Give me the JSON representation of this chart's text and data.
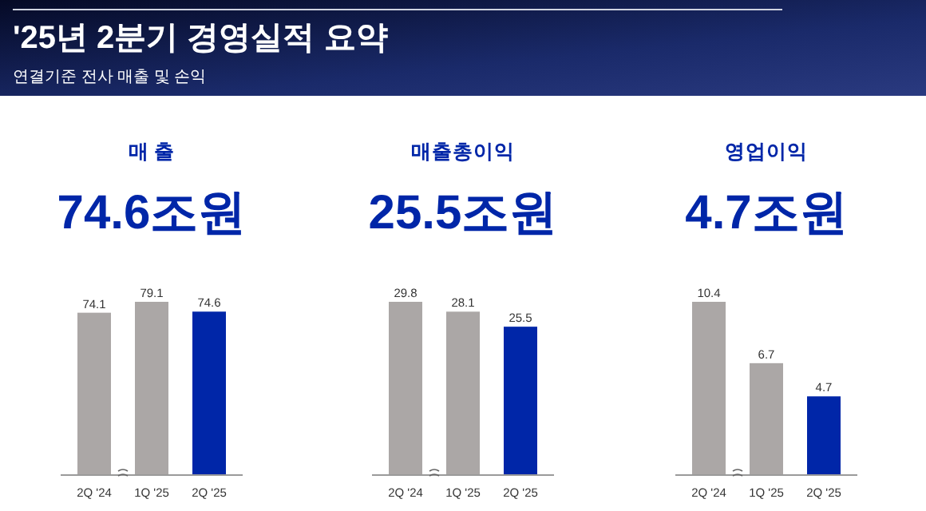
{
  "chart_data": [
    {
      "type": "bar",
      "title": "매 출",
      "subtitle": "74.6조원",
      "annotations": [
        "'25년 2분기 경영실적 요약",
        "연결기준 전사 매출 및 손익"
      ],
      "categories": [
        "2Q '24",
        "1Q '25",
        "2Q '25"
      ],
      "values": [
        74.1,
        79.1,
        74.6
      ],
      "colors": [
        "#aba7a6",
        "#aba7a6",
        "#0026a8"
      ],
      "data_labels": true
    },
    {
      "type": "bar",
      "title": "매출총이익",
      "subtitle": "25.5조원",
      "categories": [
        "2Q '24",
        "1Q '25",
        "2Q '25"
      ],
      "values": [
        29.8,
        28.1,
        25.5
      ],
      "colors": [
        "#aba7a6",
        "#aba7a6",
        "#0026a8"
      ],
      "data_labels": true
    },
    {
      "type": "bar",
      "title": "영업이익",
      "subtitle": "4.7조원",
      "categories": [
        "2Q '24",
        "1Q '25",
        "2Q '25"
      ],
      "values": [
        10.4,
        6.7,
        4.7
      ],
      "colors": [
        "#aba7a6",
        "#aba7a6",
        "#0026a8"
      ],
      "data_labels": true
    }
  ]
}
